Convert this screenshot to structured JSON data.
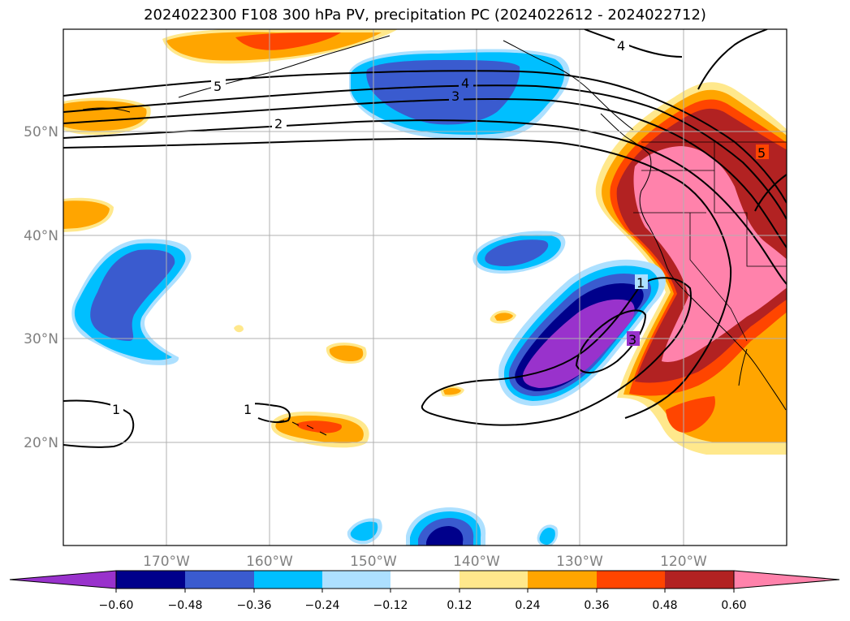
{
  "title": "2024022300 F108 300 hPa PV, precipitation PC (2024022612 - 2024022712)",
  "lat_labels": [
    "50°N",
    "40°N",
    "30°N",
    "20°N"
  ],
  "lon_labels": [
    "170°W",
    "160°W",
    "150°W",
    "140°W",
    "130°W",
    "120°W"
  ],
  "contour_labels": [
    "5",
    "4",
    "3",
    "2",
    "1",
    "1",
    "1",
    "3",
    "4",
    "5"
  ],
  "colorbar": {
    "ticks": [
      "−0.60",
      "−0.48",
      "−0.36",
      "−0.24",
      "−0.12",
      "0.12",
      "0.24",
      "0.36",
      "0.48",
      "0.60"
    ],
    "colors": [
      "#9932CC",
      "#00008B",
      "#3A5BCF",
      "#00BFFF",
      "#ADE0FF",
      "#FFFFFF",
      "#FFE88C",
      "#FFA500",
      "#FF4500",
      "#B22222",
      "#FF82AB"
    ]
  },
  "colors": {
    "neg_extreme": "#9932CC",
    "neg_4": "#00008B",
    "neg_3": "#3A5BCF",
    "neg_2": "#00BFFF",
    "neg_1": "#ADE0FF",
    "pos_1": "#FFE88C",
    "pos_2": "#FFA500",
    "pos_3": "#FF4500",
    "pos_4": "#B22222",
    "pos_extreme": "#FF82AB"
  }
}
